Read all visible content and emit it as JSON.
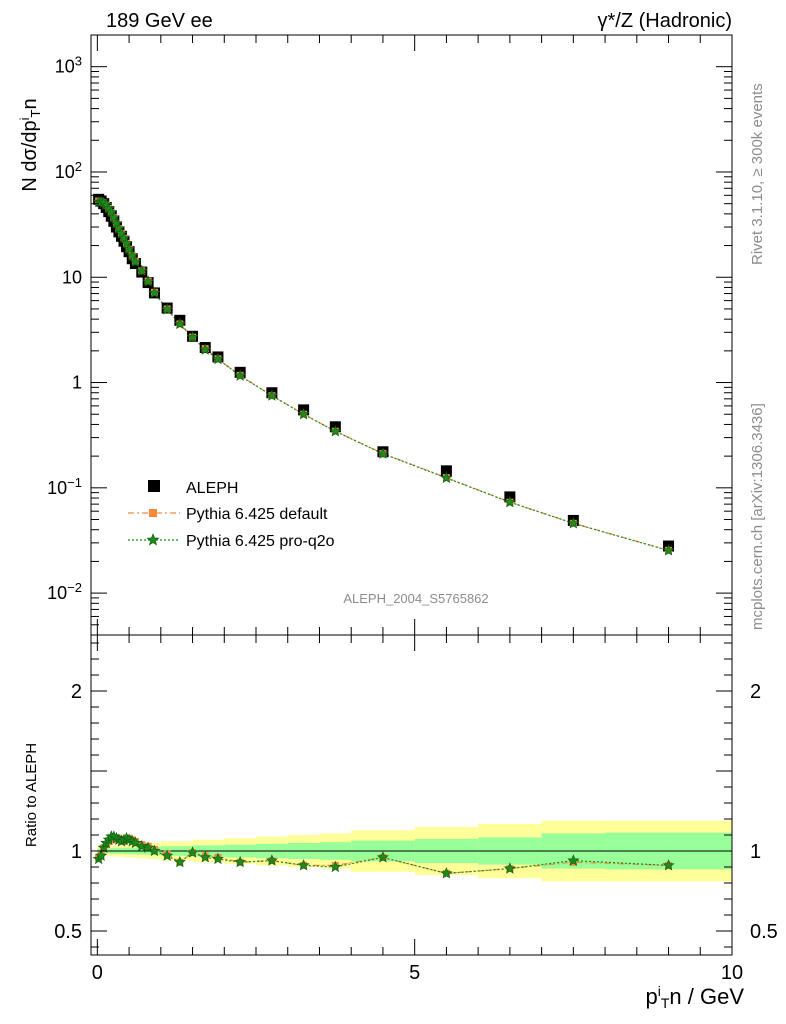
{
  "header": {
    "left_title": "189 GeV ee",
    "right_title": "γ*/Z (Hadronic)"
  },
  "side": {
    "rivet": "Rivet 3.1.10, ≥ 300k events",
    "mcplots": "mcplots.cern.ch [arXiv:1306.3436]"
  },
  "analysis_id": "ALEPH_2004_S5765862",
  "legend": {
    "data": "ALEPH",
    "mc1": "Pythia 6.425 default",
    "mc2": "Pythia 6.425 pro-q2o"
  },
  "colors": {
    "data": "#000000",
    "mc1": "#f58a3e",
    "mc2": "#1f8a1f",
    "band_inner": "#99ff99",
    "band_outer": "#ffff99"
  },
  "chart_data": [
    {
      "type": "scatter",
      "panel": "main",
      "ylabel": "N dσ/dp_T^i n",
      "yscale": "log",
      "ylim": [
        0.004,
        2000
      ],
      "xlim": [
        -0.1,
        10.0
      ],
      "y_tick_labels": [
        "10^-2",
        "10^-1",
        "1",
        "10",
        "10^2",
        "10^3"
      ],
      "x": [
        0.02,
        0.06,
        0.1,
        0.14,
        0.18,
        0.22,
        0.26,
        0.3,
        0.34,
        0.38,
        0.42,
        0.46,
        0.5,
        0.55,
        0.6,
        0.7,
        0.8,
        0.9,
        1.1,
        1.3,
        1.5,
        1.7,
        1.9,
        2.25,
        2.75,
        3.25,
        3.75,
        4.5,
        5.5,
        6.5,
        7.5,
        9.0
      ],
      "series": [
        {
          "name": "ALEPH",
          "values": [
            55,
            53,
            50,
            46,
            42,
            38,
            34,
            30,
            27,
            24.5,
            22,
            19.5,
            17.5,
            15,
            13.5,
            11.2,
            8.9,
            7.1,
            5.1,
            3.9,
            2.75,
            2.15,
            1.75,
            1.25,
            0.8,
            0.55,
            0.38,
            0.22,
            0.145,
            0.082,
            0.049,
            0.028
          ]
        },
        {
          "name": "Pythia 6.425 default",
          "values": [
            53,
            52,
            51,
            48,
            45,
            41,
            37,
            32,
            29,
            26,
            23.5,
            21,
            18.5,
            16,
            14.2,
            11.5,
            9.2,
            7.2,
            5.0,
            3.6,
            2.7,
            2.1,
            1.68,
            1.17,
            0.75,
            0.5,
            0.345,
            0.212,
            0.125,
            0.073,
            0.046,
            0.0255
          ]
        },
        {
          "name": "Pythia 6.425 pro-q2o",
          "values": [
            52,
            51.5,
            51,
            48.5,
            45,
            41.5,
            37,
            32.5,
            29,
            26,
            23.5,
            21,
            18.5,
            16,
            14,
            11.5,
            9.1,
            7.1,
            4.95,
            3.6,
            2.7,
            2.05,
            1.67,
            1.16,
            0.75,
            0.5,
            0.344,
            0.211,
            0.124,
            0.073,
            0.046,
            0.0254
          ]
        }
      ]
    },
    {
      "type": "scatter",
      "panel": "ratio",
      "ylabel": "Ratio to ALEPH",
      "xlabel": "p_T^i n / GeV",
      "ylim": [
        0.35,
        2.35
      ],
      "xlim": [
        -0.1,
        10.0
      ],
      "y_tick_labels": [
        "0.5",
        "1",
        "2"
      ],
      "x_tick_labels": [
        "0",
        "5",
        "10"
      ],
      "x": [
        0.02,
        0.06,
        0.1,
        0.14,
        0.18,
        0.22,
        0.26,
        0.3,
        0.34,
        0.38,
        0.42,
        0.46,
        0.5,
        0.55,
        0.6,
        0.7,
        0.8,
        0.9,
        1.1,
        1.3,
        1.5,
        1.7,
        1.9,
        2.25,
        2.75,
        3.25,
        3.75,
        4.5,
        5.5,
        6.5,
        7.5,
        9.0
      ],
      "series": [
        {
          "name": "Pythia 6.425 default",
          "values": [
            0.96,
            0.98,
            1.02,
            1.04,
            1.06,
            1.07,
            1.08,
            1.07,
            1.08,
            1.07,
            1.06,
            1.07,
            1.08,
            1.07,
            1.06,
            1.04,
            1.03,
            1.01,
            0.98,
            0.93,
            0.99,
            0.97,
            0.96,
            0.93,
            0.94,
            0.91,
            0.91,
            0.96,
            0.86,
            0.89,
            0.93,
            0.91
          ]
        },
        {
          "name": "Pythia 6.425 pro-q2o",
          "values": [
            0.95,
            0.97,
            1.02,
            1.05,
            1.07,
            1.09,
            1.09,
            1.08,
            1.07,
            1.06,
            1.07,
            1.08,
            1.07,
            1.06,
            1.05,
            1.03,
            1.02,
            1.0,
            0.97,
            0.93,
            0.99,
            0.96,
            0.95,
            0.93,
            0.94,
            0.91,
            0.9,
            0.96,
            0.86,
            0.89,
            0.94,
            0.91
          ]
        }
      ],
      "uncertainty_bands": {
        "edges": [
          0,
          0.2,
          0.4,
          0.6,
          0.8,
          1.0,
          1.5,
          2.0,
          2.5,
          3.0,
          3.5,
          4.0,
          5.0,
          6.0,
          7.0,
          8.0,
          10.0
        ],
        "inner": [
          0.015,
          0.018,
          0.02,
          0.022,
          0.025,
          0.03,
          0.035,
          0.04,
          0.045,
          0.05,
          0.055,
          0.065,
          0.075,
          0.085,
          0.11,
          0.115,
          0.12
        ],
        "outer": [
          0.03,
          0.035,
          0.04,
          0.045,
          0.05,
          0.06,
          0.07,
          0.08,
          0.09,
          0.1,
          0.11,
          0.13,
          0.15,
          0.17,
          0.19,
          0.19,
          0.19
        ]
      }
    }
  ]
}
